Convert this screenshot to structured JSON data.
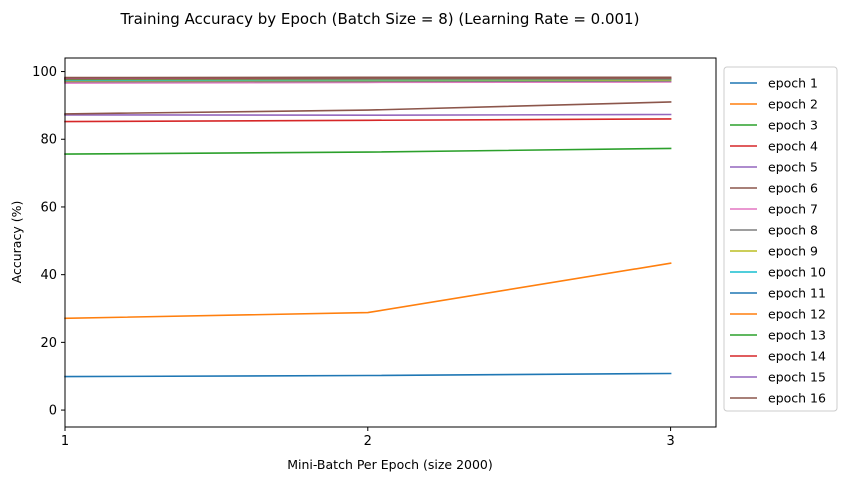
{
  "chart_data": {
    "type": "line",
    "title": "Training Accuracy by Epoch (Batch Size = 8) (Learning Rate = 0.001)",
    "xlabel": "Mini-Batch Per Epoch (size 2000)",
    "ylabel": "Accuracy (%)",
    "x": [
      1,
      2,
      3
    ],
    "xticks": [
      "1",
      "2",
      "3"
    ],
    "yticks": [
      0,
      20,
      40,
      60,
      80,
      100
    ],
    "xlim": [
      1,
      3.15
    ],
    "ylim": [
      -5,
      104
    ],
    "grid": false,
    "legend_position": "outside-right",
    "series": [
      {
        "name": "epoch 1",
        "color": "#1f77b4",
        "values": [
          9.9,
          10.2,
          10.8
        ]
      },
      {
        "name": "epoch 2",
        "color": "#ff7f0e",
        "values": [
          27.1,
          28.8,
          43.4
        ]
      },
      {
        "name": "epoch 3",
        "color": "#2ca02c",
        "values": [
          75.6,
          76.2,
          77.3
        ]
      },
      {
        "name": "epoch 4",
        "color": "#d62728",
        "values": [
          85.2,
          85.6,
          86.0
        ]
      },
      {
        "name": "epoch 5",
        "color": "#9467bd",
        "values": [
          87.2,
          87.1,
          87.3
        ]
      },
      {
        "name": "epoch 6",
        "color": "#8c564b",
        "values": [
          87.5,
          88.6,
          91.0
        ]
      },
      {
        "name": "epoch 7",
        "color": "#e377c2",
        "values": [
          96.6,
          96.8,
          96.9
        ]
      },
      {
        "name": "epoch 8",
        "color": "#7f7f7f",
        "values": [
          97.0,
          97.1,
          97.2
        ]
      },
      {
        "name": "epoch 9",
        "color": "#bcbd22",
        "values": [
          97.3,
          97.4,
          97.5
        ]
      },
      {
        "name": "epoch 10",
        "color": "#17becf",
        "values": [
          97.5,
          97.6,
          97.7
        ]
      },
      {
        "name": "epoch 11",
        "color": "#1f77b4",
        "values": [
          97.7,
          97.8,
          97.8
        ]
      },
      {
        "name": "epoch 12",
        "color": "#ff7f0e",
        "values": [
          97.8,
          97.9,
          97.9
        ]
      },
      {
        "name": "epoch 13",
        "color": "#2ca02c",
        "values": [
          97.9,
          98.0,
          98.0
        ]
      },
      {
        "name": "epoch 14",
        "color": "#d62728",
        "values": [
          98.0,
          98.1,
          98.1
        ]
      },
      {
        "name": "epoch 15",
        "color": "#9467bd",
        "values": [
          98.1,
          98.2,
          98.2
        ]
      },
      {
        "name": "epoch 16",
        "color": "#8c564b",
        "values": [
          98.2,
          98.3,
          98.3
        ]
      }
    ]
  }
}
